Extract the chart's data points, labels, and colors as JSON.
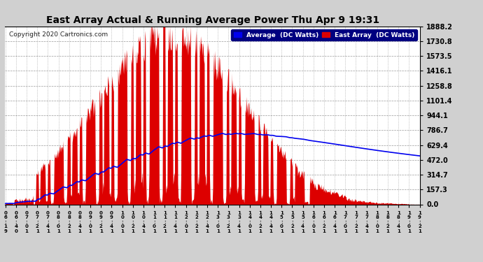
{
  "title": "East Array Actual & Running Average Power Thu Apr 9 19:31",
  "copyright": "Copyright 2020 Cartronics.com",
  "legend_avg": "Average  (DC Watts)",
  "legend_east": "East Array  (DC Watts)",
  "yticks": [
    0.0,
    157.3,
    314.7,
    472.0,
    629.4,
    786.7,
    944.1,
    1101.4,
    1258.8,
    1416.1,
    1573.5,
    1730.8,
    1888.2
  ],
  "ymax": 1888.2,
  "ymin": 0.0,
  "bg_color": "#d0d0d0",
  "plot_bg_color": "#ffffff",
  "bar_color": "#dd0000",
  "avg_color": "#0000ee",
  "title_color": "#000000",
  "grid_color": "#999999",
  "xtick_labels": [
    "06:19",
    "06:40",
    "07:01",
    "07:21",
    "07:41",
    "08:01",
    "08:21",
    "08:41",
    "09:01",
    "09:21",
    "09:41",
    "10:01",
    "10:21",
    "10:41",
    "11:01",
    "11:21",
    "11:41",
    "12:01",
    "12:21",
    "12:41",
    "13:01",
    "13:21",
    "13:41",
    "14:01",
    "14:21",
    "14:41",
    "15:01",
    "15:21",
    "15:41",
    "16:01",
    "16:21",
    "16:41",
    "17:01",
    "17:21",
    "17:41",
    "18:01",
    "18:21",
    "18:41",
    "19:01",
    "19:21"
  ]
}
